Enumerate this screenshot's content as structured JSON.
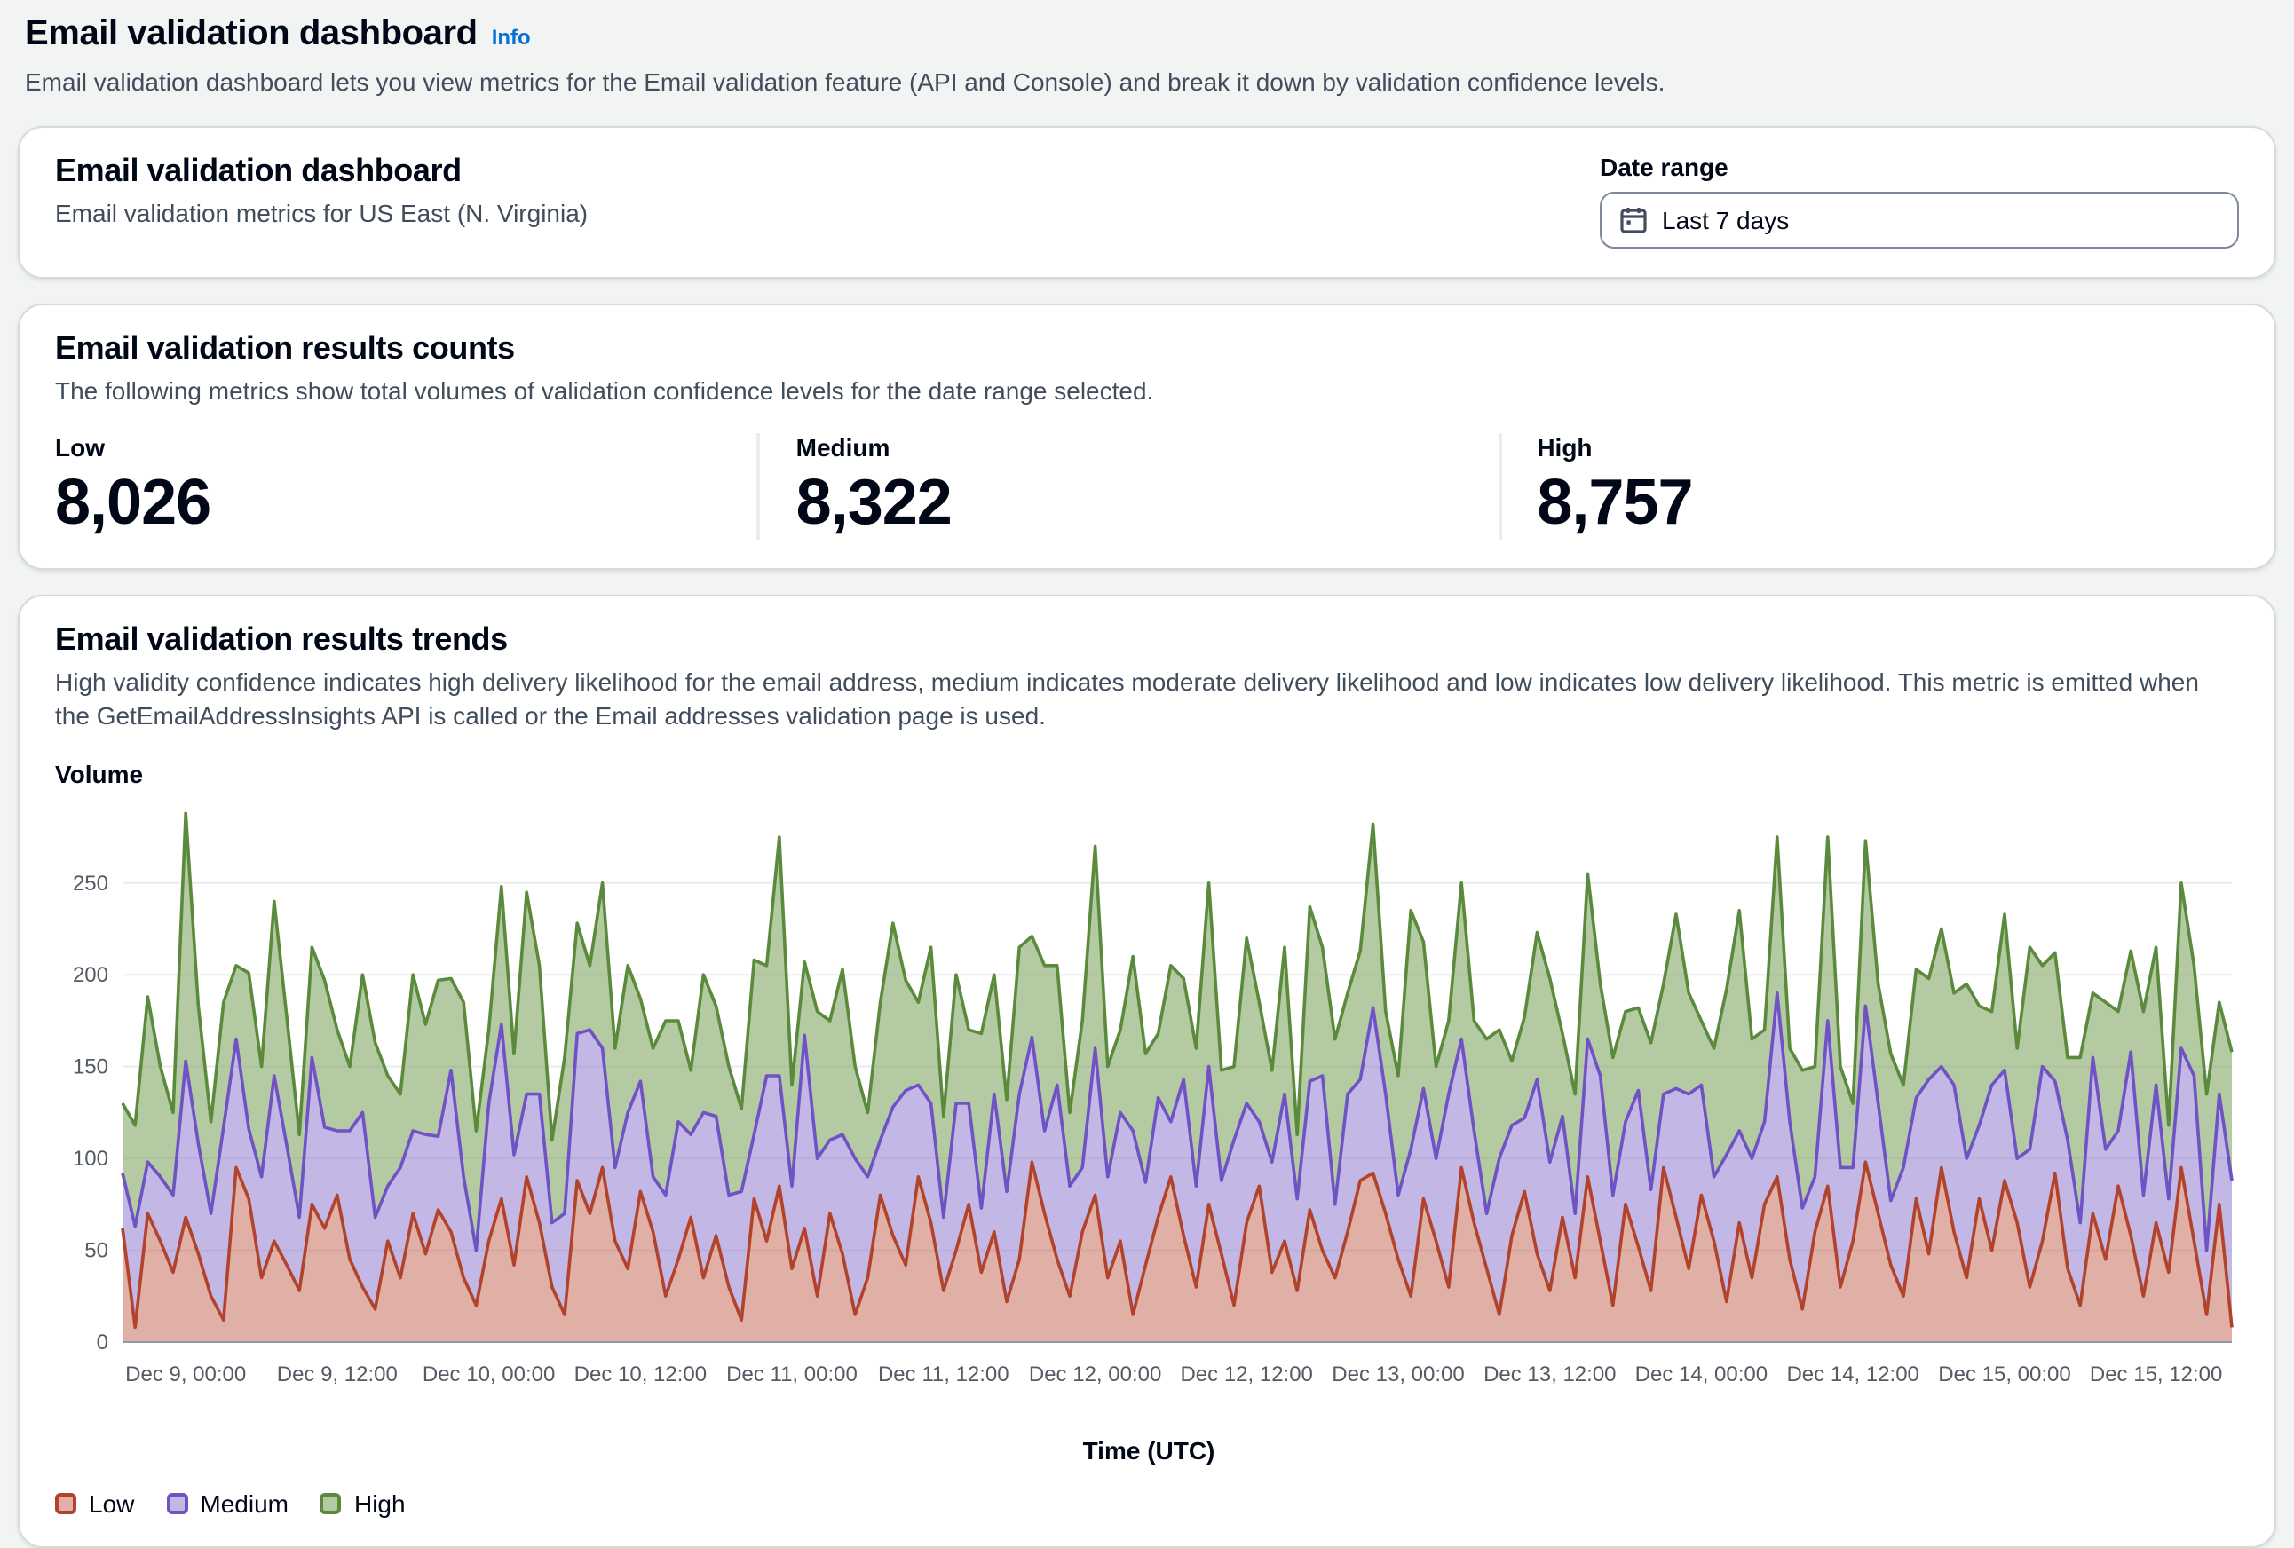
{
  "page": {
    "title": "Email validation dashboard",
    "info_link": "Info",
    "description": "Email validation dashboard lets you view metrics for the Email validation feature (API and Console) and break it down by validation confidence levels."
  },
  "overview_card": {
    "title": "Email validation dashboard",
    "subtitle": "Email validation metrics for US East (N. Virginia)",
    "date_range_label": "Date range",
    "date_range_value": "Last 7 days",
    "calendar_icon": "calendar-icon"
  },
  "counts_card": {
    "title": "Email validation results counts",
    "description": "The following metrics show total volumes of validation confidence levels for the date range selected.",
    "stats": [
      {
        "label": "Low",
        "value": "8,026"
      },
      {
        "label": "Medium",
        "value": "8,322"
      },
      {
        "label": "High",
        "value": "8,757"
      }
    ]
  },
  "trends_card": {
    "title": "Email validation results trends",
    "description": "High validity confidence indicates high delivery likelihood for the email address, medium indicates moderate delivery likelihood and low indicates low delivery likelihood. This metric is emitted when the GetEmailAddressInsights API is called or the Email addresses validation page is used.",
    "y_axis_label": "Volume",
    "x_axis_label": "Time (UTC)"
  },
  "chart_data": {
    "type": "area",
    "stacked": true,
    "title": "Email validation results trends",
    "xlabel": "Time (UTC)",
    "ylabel": "Volume",
    "ylim": [
      0,
      290
    ],
    "y_ticks": [
      0,
      50,
      100,
      150,
      200,
      250
    ],
    "grid": "horizontal",
    "legend_position": "bottom-left",
    "x_ticks": [
      "Dec 9, 00:00",
      "Dec 9, 12:00",
      "Dec 10, 00:00",
      "Dec 10, 12:00",
      "Dec 11, 00:00",
      "Dec 11, 12:00",
      "Dec 12, 00:00",
      "Dec 12, 12:00",
      "Dec 13, 00:00",
      "Dec 13, 12:00",
      "Dec 14, 00:00",
      "Dec 14, 12:00",
      "Dec 15, 00:00",
      "Dec 15, 12:00"
    ],
    "x_tick_indices": [
      5,
      17,
      29,
      41,
      53,
      65,
      77,
      89,
      101,
      113,
      125,
      137,
      149,
      161
    ],
    "x_resolution": "hourly, 168 points",
    "series": [
      {
        "name": "Low",
        "stroke": "#b1432d",
        "fill": "rgba(199,110,92,0.55)",
        "values": [
          62,
          8,
          70,
          55,
          38,
          68,
          48,
          25,
          12,
          95,
          78,
          35,
          55,
          42,
          28,
          75,
          62,
          80,
          45,
          30,
          18,
          55,
          35,
          70,
          48,
          72,
          60,
          35,
          20,
          55,
          78,
          42,
          90,
          65,
          30,
          15,
          88,
          70,
          95,
          55,
          40,
          82,
          60,
          25,
          45,
          68,
          35,
          58,
          30,
          12,
          78,
          55,
          85,
          40,
          62,
          25,
          70,
          48,
          15,
          35,
          80,
          58,
          42,
          90,
          65,
          28,
          50,
          75,
          38,
          60,
          22,
          45,
          98,
          70,
          45,
          25,
          60,
          80,
          35,
          55,
          15,
          42,
          68,
          90,
          58,
          30,
          75,
          48,
          20,
          65,
          85,
          38,
          55,
          28,
          72,
          50,
          35,
          60,
          88,
          92,
          70,
          45,
          25,
          78,
          55,
          30,
          95,
          65,
          40,
          15,
          58,
          82,
          48,
          28,
          68,
          35,
          90,
          55,
          20,
          75,
          52,
          28,
          95,
          68,
          40,
          80,
          55,
          22,
          65,
          35,
          75,
          90,
          45,
          18,
          60,
          85,
          30,
          55,
          98,
          70,
          42,
          25,
          78,
          48,
          95,
          60,
          35,
          78,
          50,
          88,
          65,
          30,
          55,
          92,
          40,
          20,
          70,
          45,
          85,
          58,
          25,
          65,
          38,
          95,
          55,
          15,
          75,
          8
        ]
      },
      {
        "name": "Medium",
        "stroke": "#6f52c4",
        "fill": "rgba(146,125,208,0.55)",
        "values": [
          30,
          55,
          28,
          35,
          42,
          85,
          60,
          45,
          105,
          70,
          38,
          55,
          90,
          65,
          40,
          80,
          55,
          35,
          70,
          95,
          50,
          30,
          60,
          45,
          65,
          40,
          88,
          55,
          30,
          75,
          95,
          60,
          45,
          70,
          35,
          55,
          80,
          100,
          65,
          40,
          85,
          60,
          30,
          55,
          75,
          45,
          90,
          65,
          50,
          70,
          35,
          90,
          60,
          45,
          105,
          75,
          40,
          65,
          85,
          55,
          30,
          70,
          95,
          50,
          65,
          40,
          80,
          55,
          35,
          75,
          60,
          90,
          68,
          45,
          95,
          60,
          35,
          80,
          55,
          70,
          100,
          45,
          65,
          30,
          85,
          55,
          75,
          40,
          90,
          65,
          35,
          60,
          80,
          50,
          70,
          95,
          40,
          75,
          55,
          90,
          65,
          35,
          80,
          60,
          45,
          105,
          70,
          50,
          30,
          85,
          60,
          40,
          95,
          70,
          55,
          35,
          75,
          90,
          60,
          45,
          85,
          55,
          40,
          70,
          95,
          60,
          35,
          80,
          50,
          65,
          45,
          100,
          75,
          55,
          30,
          90,
          65,
          40,
          85,
          60,
          35,
          70,
          55,
          95,
          55,
          80,
          65,
          40,
          90,
          60,
          35,
          75,
          95,
          50,
          70,
          45,
          85,
          60,
          30,
          100,
          55,
          75,
          40,
          65,
          90,
          35,
          60,
          80
        ]
      },
      {
        "name": "High",
        "stroke": "#5b8a3c",
        "fill": "rgba(130,166,102,0.60)",
        "values": [
          38,
          55,
          90,
          60,
          45,
          135,
          75,
          50,
          68,
          40,
          85,
          60,
          95,
          70,
          45,
          60,
          80,
          55,
          35,
          75,
          95,
          60,
          40,
          85,
          60,
          85,
          50,
          95,
          65,
          40,
          75,
          55,
          110,
          70,
          45,
          85,
          60,
          35,
          90,
          65,
          80,
          45,
          70,
          95,
          55,
          35,
          75,
          60,
          70,
          45,
          95,
          60,
          130,
          55,
          40,
          80,
          65,
          90,
          50,
          35,
          75,
          100,
          60,
          45,
          85,
          55,
          70,
          40,
          95,
          65,
          50,
          80,
          55,
          90,
          65,
          40,
          80,
          110,
          60,
          45,
          95,
          70,
          35,
          85,
          55,
          75,
          100,
          60,
          40,
          90,
          65,
          50,
          80,
          35,
          95,
          70,
          90,
          55,
          70,
          100,
          45,
          65,
          130,
          80,
          50,
          40,
          85,
          60,
          95,
          70,
          35,
          55,
          80,
          100,
          45,
          65,
          90,
          50,
          75,
          60,
          45,
          80,
          60,
          95,
          55,
          35,
          70,
          90,
          120,
          65,
          50,
          85,
          40,
          75,
          60,
          100,
          55,
          35,
          90,
          65,
          80,
          45,
          70,
          55,
          75,
          50,
          95,
          65,
          40,
          85,
          60,
          110,
          55,
          70,
          45,
          90,
          35,
          80,
          65,
          55,
          100,
          75,
          40,
          90,
          60,
          85,
          50,
          70
        ]
      }
    ]
  }
}
